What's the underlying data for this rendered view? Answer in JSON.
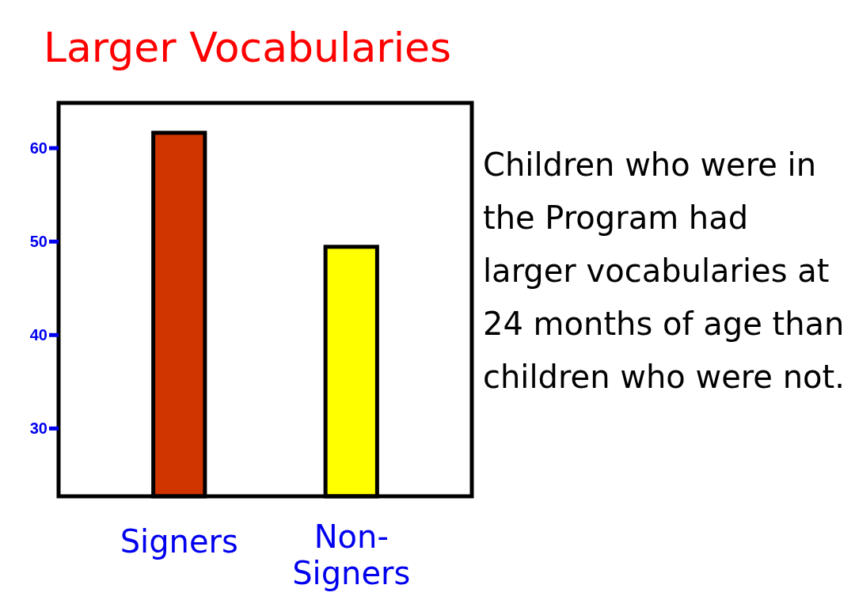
{
  "chart_data": {
    "type": "bar",
    "title": "Larger Vocabularies",
    "categories": [
      "Signers",
      "Non-Signers"
    ],
    "values": [
      61.6,
      49.4
    ],
    "colors": [
      "#d03500",
      "#ffff00"
    ],
    "ylim": [
      22.7,
      64.8
    ],
    "yticks": [
      30,
      40,
      50,
      60
    ],
    "grid": false,
    "annotations": [
      "Children who were in the Program had larger vocabularies at 24 months of age than children who were not."
    ]
  }
}
